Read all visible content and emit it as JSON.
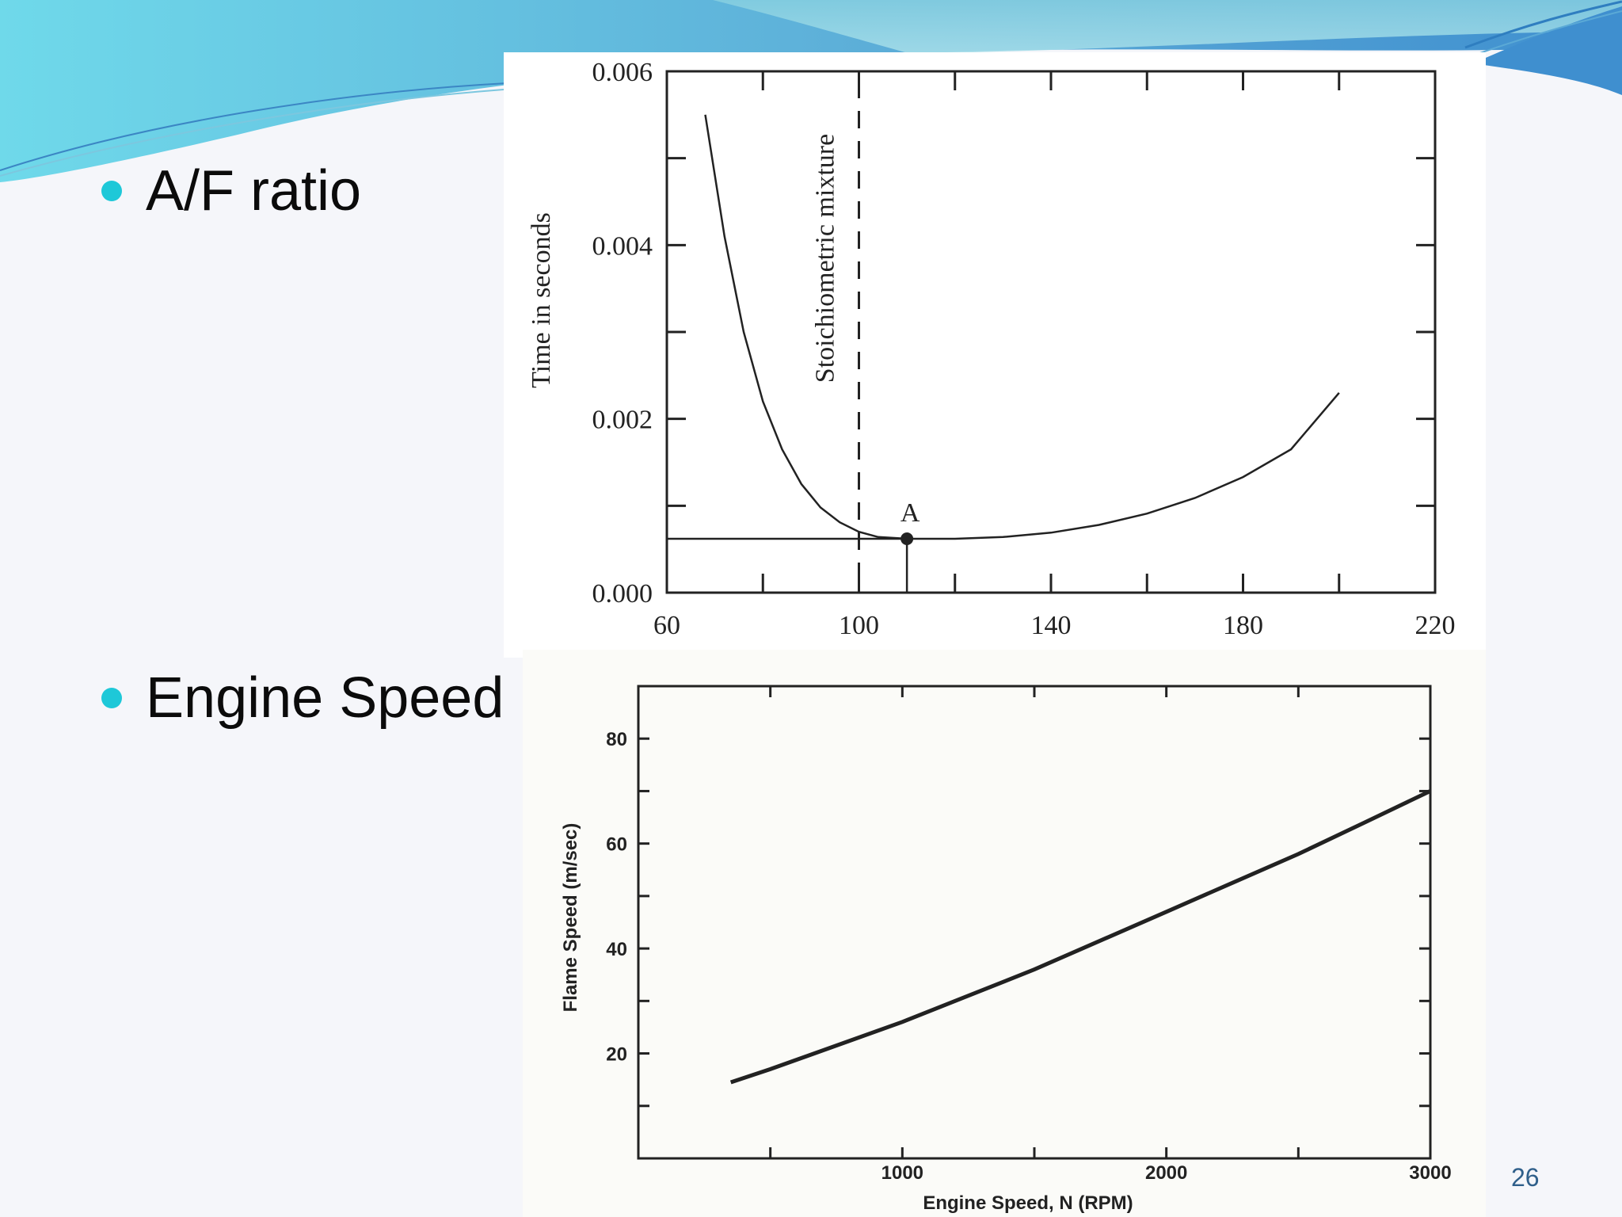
{
  "slide": {
    "bullets": [
      {
        "text": "A/F ratio"
      },
      {
        "text": "Engine Speed"
      }
    ],
    "page_number": "26",
    "colors": {
      "bullet": "#1ec8d8",
      "header_wave": "#5fc6de",
      "page_number": "#2f5f8a"
    }
  },
  "chart_data": [
    {
      "type": "line",
      "title": "",
      "xlabel": "",
      "ylabel": "Time in seconds",
      "x_ticks": [
        "60",
        "100",
        "140",
        "180",
        "220"
      ],
      "y_ticks": [
        "0.000",
        "0.002",
        "0.004",
        "0.006"
      ],
      "xlim": [
        60,
        220
      ],
      "ylim": [
        0,
        0.006
      ],
      "series": [
        {
          "x": [
            68,
            72,
            76,
            80,
            84,
            88,
            92,
            96,
            100,
            104,
            110,
            120,
            130,
            140,
            150,
            160,
            170,
            180,
            190,
            200
          ],
          "y": [
            0.0055,
            0.0041,
            0.003,
            0.0022,
            0.00165,
            0.00125,
            0.00098,
            0.00081,
            0.0007,
            0.00064,
            0.00062,
            0.00062,
            0.00064,
            0.00069,
            0.00078,
            0.00091,
            0.00109,
            0.00133,
            0.00165,
            0.0023
          ]
        }
      ],
      "annotations": [
        {
          "text": "Stoichiometric mixture",
          "x": 100
        },
        {
          "text": "A",
          "x": 110,
          "y": 0.00062
        }
      ],
      "grid": false
    },
    {
      "type": "line",
      "title": "",
      "xlabel": "Engine Speed, N (RPM)",
      "ylabel": "Flame Speed (m/sec)",
      "x_ticks": [
        "1000",
        "2000",
        "3000"
      ],
      "y_ticks": [
        "20",
        "40",
        "60",
        "80"
      ],
      "xlim": [
        0,
        3000
      ],
      "ylim": [
        0,
        90
      ],
      "series": [
        {
          "x": [
            350,
            500,
            750,
            1000,
            1250,
            1500,
            1750,
            2000,
            2250,
            2500,
            2750,
            3000
          ],
          "y": [
            14.5,
            17,
            21.5,
            26,
            31,
            36,
            41.5,
            47,
            52.5,
            58,
            64,
            70
          ]
        }
      ],
      "grid": false
    }
  ]
}
